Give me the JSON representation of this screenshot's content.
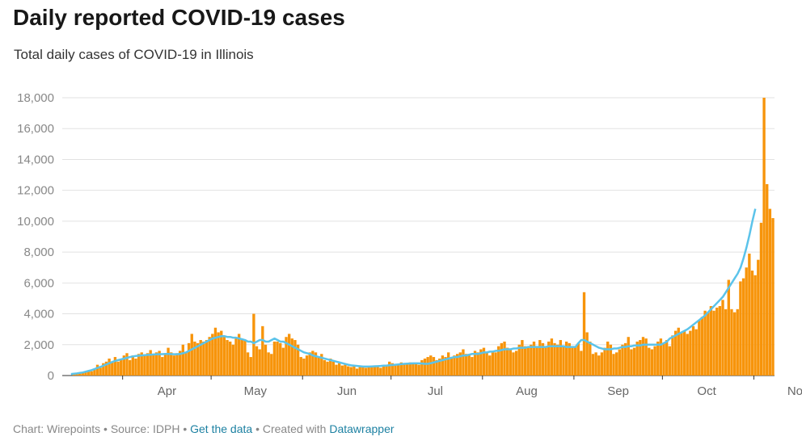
{
  "title": "Daily reported COVID-19 cases",
  "subtitle": "Total daily cases of COVID-19 in Illinois",
  "footer": {
    "chart_by": "Chart: Wirepoints",
    "sep1": " • ",
    "source": "Source: IDPH",
    "sep2": " • ",
    "get_data": "Get the data",
    "sep3": " • ",
    "created_with": "Created with ",
    "datawrapper": "Datawrapper"
  },
  "colors": {
    "bars": "#f7940a",
    "line": "#5bc3ea",
    "grid": "#e2e2e2"
  },
  "chart_data": {
    "type": "bar",
    "xlabel": "",
    "ylabel": "",
    "ylim": [
      0,
      18000
    ],
    "yticks": [
      0,
      2000,
      4000,
      6000,
      8000,
      10000,
      12000,
      14000,
      16000,
      18000
    ],
    "ytick_labels": [
      "0",
      "2,000",
      "4,000",
      "6,000",
      "8,000",
      "10,000",
      "12,000",
      "14,000",
      "16,000",
      "18,000"
    ],
    "xtick_labels": [
      {
        "label": "Apr",
        "day": 18
      },
      {
        "label": "May",
        "day": 48
      },
      {
        "label": "Jun",
        "day": 79
      },
      {
        "label": "Jul",
        "day": 109
      },
      {
        "label": "Aug",
        "day": 140
      },
      {
        "label": "Sep",
        "day": 171
      },
      {
        "label": "Oct",
        "day": 201
      },
      {
        "label": "Nov",
        "day": 232
      }
    ],
    "start_date": "2020-03-15",
    "series": [
      {
        "type": "bar",
        "values": [
          0,
          100,
          120,
          150,
          180,
          250,
          300,
          280,
          400,
          700,
          500,
          800,
          900,
          1100,
          850,
          1200,
          900,
          1000,
          1300,
          1450,
          1000,
          1300,
          1100,
          1400,
          1500,
          1300,
          1450,
          1650,
          1350,
          1500,
          1600,
          1200,
          1400,
          1800,
          1500,
          1300,
          1450,
          1600,
          2000,
          1500,
          2100,
          2700,
          2200,
          2100,
          2300,
          2200,
          2300,
          2500,
          2700,
          3100,
          2800,
          2900,
          2500,
          2300,
          2200,
          2000,
          2400,
          2700,
          2400,
          2300,
          1500,
          1200,
          4000,
          1900,
          1700,
          3200,
          2000,
          1500,
          1400,
          2200,
          2200,
          2100,
          1800,
          2500,
          2700,
          2400,
          2300,
          2000,
          1200,
          1100,
          1300,
          1500,
          1600,
          1500,
          1200,
          1400,
          1000,
          900,
          1100,
          900,
          700,
          800,
          650,
          700,
          600,
          550,
          650,
          450,
          550,
          600,
          500,
          550,
          600,
          650,
          550,
          500,
          600,
          700,
          900,
          800,
          750,
          700,
          850,
          800,
          750,
          850,
          800,
          750,
          700,
          1000,
          1100,
          1200,
          1300,
          1200,
          1000,
          1100,
          1300,
          1200,
          1500,
          1100,
          1300,
          1400,
          1500,
          1700,
          1400,
          1400,
          1200,
          1600,
          1500,
          1700,
          1800,
          1500,
          1300,
          1600,
          1500,
          1900,
          2100,
          2200,
          1800,
          1700,
          1500,
          1600,
          2000,
          2300,
          1900,
          1800,
          2000,
          2200,
          1800,
          2300,
          2100,
          1900,
          2200,
          2400,
          2100,
          2000,
          2300,
          1900,
          2200,
          2100,
          1800,
          1900,
          2100,
          1600,
          5400,
          2800,
          2200,
          1400,
          1500,
          1300,
          1500,
          1800,
          2200,
          2000,
          1400,
          1500,
          1700,
          2000,
          2100,
          2500,
          1700,
          1800,
          2200,
          2300,
          2500,
          2400,
          1800,
          1700,
          1900,
          2200,
          2400,
          2100,
          2300,
          1900,
          2600,
          2900,
          3100,
          2800,
          2900,
          2700,
          2900,
          3200,
          3000,
          3600,
          3800,
          4200,
          4100,
          4500,
          4200,
          4400,
          4500,
          4900,
          4300,
          6200,
          4300,
          4100,
          4300,
          6100,
          6300,
          7000,
          7900,
          6800,
          6500,
          7500,
          9900,
          18000,
          12400,
          10800,
          10200
        ]
      },
      {
        "type": "line",
        "values": [
          100,
          120,
          140,
          170,
          200,
          250,
          300,
          350,
          420,
          500,
          560,
          640,
          720,
          800,
          880,
          950,
          1000,
          1050,
          1100,
          1150,
          1200,
          1240,
          1270,
          1290,
          1300,
          1320,
          1340,
          1350,
          1370,
          1380,
          1380,
          1390,
          1400,
          1400,
          1390,
          1380,
          1380,
          1400,
          1450,
          1500,
          1600,
          1700,
          1800,
          1900,
          2000,
          2100,
          2200,
          2300,
          2400,
          2450,
          2500,
          2550,
          2550,
          2500,
          2500,
          2450,
          2450,
          2400,
          2350,
          2300,
          2200,
          2200,
          2100,
          2200,
          2300,
          2300,
          2200,
          2200,
          2300,
          2400,
          2300,
          2200,
          2200,
          2100,
          2000,
          1900,
          1800,
          1700,
          1600,
          1500,
          1450,
          1400,
          1300,
          1250,
          1200,
          1150,
          1100,
          1050,
          1000,
          950,
          900,
          850,
          800,
          750,
          700,
          660,
          640,
          620,
          600,
          580,
          580,
          580,
          590,
          600,
          610,
          620,
          640,
          650,
          670,
          680,
          700,
          720,
          740,
          760,
          770,
          780,
          790,
          790,
          790,
          780,
          760,
          760,
          800,
          850,
          900,
          950,
          1000,
          1050,
          1100,
          1150,
          1200,
          1200,
          1250,
          1300,
          1300,
          1350,
          1400,
          1400,
          1400,
          1450,
          1500,
          1500,
          1550,
          1550,
          1600,
          1600,
          1650,
          1700,
          1700,
          1700,
          1750,
          1750,
          1800,
          1800,
          1800,
          1850,
          1850,
          1850,
          1850,
          1850,
          1850,
          1850,
          1900,
          1900,
          1900,
          1900,
          1900,
          1900,
          1850,
          1850,
          1850,
          1850,
          2100,
          2300,
          2300,
          2200,
          2100,
          2000,
          1900,
          1800,
          1750,
          1700,
          1700,
          1700,
          1750,
          1750,
          1800,
          1850,
          1850,
          1900,
          1900,
          1950,
          1950,
          1950,
          2000,
          2000,
          2000,
          2000,
          2000,
          2000,
          2000,
          2100,
          2200,
          2400,
          2500,
          2600,
          2700,
          2800,
          2900,
          3000,
          3150,
          3300,
          3450,
          3600,
          3750,
          3900,
          4100,
          4300,
          4500,
          4700,
          4900,
          5100,
          5400,
          5700,
          6000,
          6300,
          6600,
          7000,
          7600,
          8300,
          9100,
          10000,
          10800
        ]
      }
    ]
  }
}
